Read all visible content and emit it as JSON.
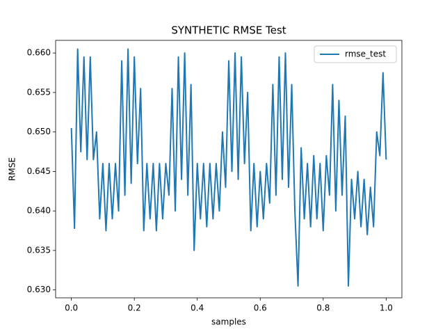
{
  "chart_data": {
    "type": "line",
    "title": "SYNTHETIC RMSE Test",
    "xlabel": "samples",
    "ylabel": "RMSE",
    "x": [
      0,
      0.01,
      0.02,
      0.03,
      0.04,
      0.05,
      0.06,
      0.07,
      0.08,
      0.09,
      0.1,
      0.11,
      0.12,
      0.13,
      0.14,
      0.15,
      0.16,
      0.17,
      0.18,
      0.19,
      0.2,
      0.21,
      0.22,
      0.23,
      0.24,
      0.25,
      0.26,
      0.27,
      0.28,
      0.29,
      0.3,
      0.31,
      0.32,
      0.33,
      0.34,
      0.35,
      0.36,
      0.37,
      0.38,
      0.39,
      0.4,
      0.41,
      0.42,
      0.43,
      0.44,
      0.45,
      0.46,
      0.47,
      0.48,
      0.49,
      0.5,
      0.51,
      0.52,
      0.53,
      0.54,
      0.55,
      0.56,
      0.57,
      0.58,
      0.59,
      0.6,
      0.61,
      0.62,
      0.63,
      0.64,
      0.65,
      0.66,
      0.67,
      0.68,
      0.69,
      0.7,
      0.71,
      0.72,
      0.73,
      0.74,
      0.75,
      0.76,
      0.77,
      0.78,
      0.79,
      0.8,
      0.81,
      0.82,
      0.83,
      0.84,
      0.85,
      0.86,
      0.87,
      0.88,
      0.89,
      0.9,
      0.91,
      0.92,
      0.93,
      0.94,
      0.95,
      0.96,
      0.97,
      0.98,
      0.99,
      1.0
    ],
    "series": [
      {
        "name": "rmse_test",
        "color": "#1f77b4",
        "values": [
          0.6505,
          0.6378,
          0.6605,
          0.6475,
          0.6595,
          0.6465,
          0.6595,
          0.6465,
          0.65,
          0.639,
          0.646,
          0.6375,
          0.646,
          0.639,
          0.646,
          0.64,
          0.659,
          0.642,
          0.6605,
          0.6435,
          0.6595,
          0.646,
          0.6555,
          0.6375,
          0.646,
          0.639,
          0.646,
          0.6375,
          0.646,
          0.639,
          0.646,
          0.642,
          0.6555,
          0.64,
          0.6595,
          0.644,
          0.66,
          0.642,
          0.656,
          0.635,
          0.646,
          0.639,
          0.646,
          0.638,
          0.646,
          0.639,
          0.646,
          0.64,
          0.65,
          0.643,
          0.659,
          0.645,
          0.66,
          0.644,
          0.6595,
          0.646,
          0.655,
          0.6375,
          0.646,
          0.638,
          0.645,
          0.639,
          0.646,
          0.641,
          0.656,
          0.642,
          0.6595,
          0.644,
          0.66,
          0.643,
          0.656,
          0.64,
          0.6305,
          0.648,
          0.639,
          0.646,
          0.638,
          0.647,
          0.639,
          0.646,
          0.6375,
          0.647,
          0.642,
          0.656,
          0.64,
          0.654,
          0.642,
          0.652,
          0.6305,
          0.644,
          0.639,
          0.645,
          0.638,
          0.644,
          0.637,
          0.643,
          0.638,
          0.65,
          0.647,
          0.6575,
          0.6465
        ]
      }
    ],
    "xlim": [
      -0.05,
      1.05
    ],
    "xticks": [
      {
        "value": 0,
        "label": "0.0"
      },
      0.2,
      0.4,
      0.6,
      0.8,
      {
        "value": 1,
        "label": "1.0"
      }
    ],
    "ylim": [
      0.629,
      0.6616
    ],
    "yticks": [
      {
        "value": 0.63,
        "label": "0.630"
      },
      0.635,
      {
        "value": 0.64,
        "label": "0.640"
      },
      0.645,
      {
        "value": 0.65,
        "label": "0.650"
      },
      0.655,
      {
        "value": 0.66,
        "label": "0.660"
      }
    ],
    "legend": "upper right",
    "grid": false
  }
}
